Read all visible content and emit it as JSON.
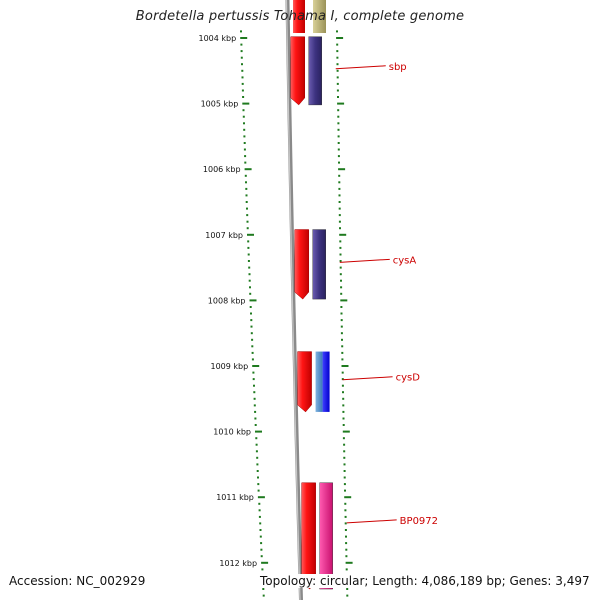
{
  "map": {
    "title": "Bordetella pertussis Tohama I, complete genome",
    "accession": "Accession: NC_002929",
    "topology": "Topology: circular; Length: 4,086,189 bp; Genes: 3,497"
  },
  "scale": {
    "unit": "kbp",
    "ticks": [
      {
        "label": "1004 kbp",
        "kbp": 1004
      },
      {
        "label": "1005 kbp",
        "kbp": 1005
      },
      {
        "label": "1006 kbp",
        "kbp": 1006
      },
      {
        "label": "1007 kbp",
        "kbp": 1007
      },
      {
        "label": "1008 kbp",
        "kbp": 1008
      },
      {
        "label": "1009 kbp",
        "kbp": 1009
      },
      {
        "label": "1010 kbp",
        "kbp": 1010
      },
      {
        "label": "1011 kbp",
        "kbp": 1011
      },
      {
        "label": "1012 kbp",
        "kbp": 1012
      }
    ]
  },
  "genes": [
    {
      "label": "sbp",
      "color": "#e3101a",
      "feature_color": "#4a3d8f",
      "start_kbp": 1003.98,
      "end_kbp": 1005.02
    },
    {
      "label": "cysA",
      "color": "#e3101a",
      "feature_color": "#4a3d8f",
      "start_kbp": 1006.92,
      "end_kbp": 1007.98
    },
    {
      "label": "cysD",
      "color": "#e3101a",
      "feature_color": "#1a1ae6",
      "feature_color_2": "#4a90c9",
      "start_kbp": 1008.78,
      "end_kbp": 1009.7
    },
    {
      "label": "BP0972",
      "color": "#e3101a",
      "feature_color": "#e21e8c",
      "start_kbp": 1010.78,
      "end_kbp": 1012.4
    }
  ],
  "colors": {
    "tick": "#1f7a1f",
    "backbone": "#8a8a8a",
    "label": "#cc0000",
    "top_feature": "#b8b070"
  }
}
